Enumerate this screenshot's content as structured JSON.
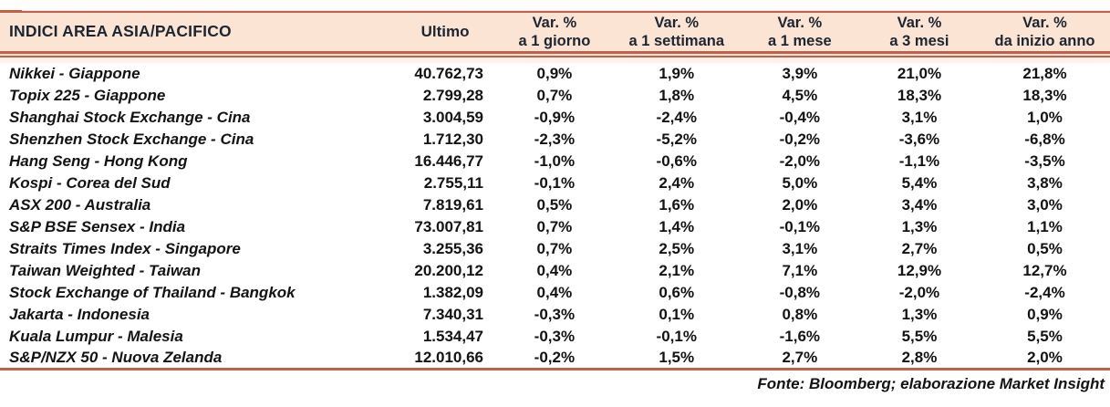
{
  "chart_data": {
    "type": "table",
    "title": "INDICI AREA ASIA/PACIFICO",
    "header": {
      "name_col": "INDICI AREA ASIA/PACIFICO",
      "ultimo_col": "Ultimo",
      "var_label": "Var. %",
      "var_periods": [
        "a 1 giorno",
        "a 1 settimana",
        "a 1 mese",
        "a 3 mesi",
        "da inizio anno"
      ]
    },
    "rows": [
      {
        "name": "Nikkei - Giappone",
        "ultimo": "40.762,73",
        "vars": [
          "0,9%",
          "1,9%",
          "3,9%",
          "21,0%",
          "21,8%"
        ]
      },
      {
        "name": "Topix 225 - Giappone",
        "ultimo": "2.799,28",
        "vars": [
          "0,7%",
          "1,8%",
          "4,5%",
          "18,3%",
          "18,3%"
        ]
      },
      {
        "name": "Shanghai Stock Exchange - Cina",
        "ultimo": "3.004,59",
        "vars": [
          "-0,9%",
          "-2,4%",
          "-0,4%",
          "3,1%",
          "1,0%"
        ]
      },
      {
        "name": "Shenzhen Stock Exchange - Cina",
        "ultimo": "1.712,30",
        "vars": [
          "-2,3%",
          "-5,2%",
          "-0,2%",
          "-3,6%",
          "-6,8%"
        ]
      },
      {
        "name": "Hang Seng - Hong Kong",
        "ultimo": "16.446,77",
        "vars": [
          "-1,0%",
          "-0,6%",
          "-2,0%",
          "-1,1%",
          "-3,5%"
        ]
      },
      {
        "name": "Kospi - Corea del Sud",
        "ultimo": "2.755,11",
        "vars": [
          "-0,1%",
          "2,4%",
          "5,0%",
          "5,4%",
          "3,8%"
        ]
      },
      {
        "name": "ASX 200 - Australia",
        "ultimo": "7.819,61",
        "vars": [
          "0,5%",
          "1,6%",
          "2,0%",
          "3,4%",
          "3,0%"
        ]
      },
      {
        "name": "S&P BSE Sensex - India",
        "ultimo": "73.007,81",
        "vars": [
          "0,7%",
          "1,4%",
          "-0,1%",
          "1,3%",
          "1,1%"
        ]
      },
      {
        "name": "Straits Times Index - Singapore",
        "ultimo": "3.255,36",
        "vars": [
          "0,7%",
          "2,5%",
          "3,1%",
          "2,7%",
          "0,5%"
        ]
      },
      {
        "name": "Taiwan Weighted - Taiwan",
        "ultimo": "20.200,12",
        "vars": [
          "0,4%",
          "2,1%",
          "7,1%",
          "12,9%",
          "12,7%"
        ]
      },
      {
        "name": "Stock Exchange of Thailand - Bangkok",
        "ultimo": "1.382,09",
        "vars": [
          "0,4%",
          "0,6%",
          "-0,8%",
          "-2,0%",
          "-2,4%"
        ]
      },
      {
        "name": "Jakarta - Indonesia",
        "ultimo": "7.340,31",
        "vars": [
          "-0,3%",
          "0,1%",
          "0,8%",
          "1,3%",
          "0,9%"
        ]
      },
      {
        "name": "Kuala Lumpur - Malesia",
        "ultimo": "1.534,47",
        "vars": [
          "-0,3%",
          "-0,1%",
          "-1,6%",
          "5,5%",
          "5,5%"
        ]
      },
      {
        "name": "S&P/NZX 50 - Nuova Zelanda",
        "ultimo": "12.010,66",
        "vars": [
          "-0,2%",
          "1,5%",
          "2,7%",
          "2,8%",
          "2,0%"
        ]
      }
    ],
    "source": "Fonte: Bloomberg; elaborazione Market Insight",
    "colors": {
      "accent_line": "#c1604b",
      "header_bg": "#fbe4d4",
      "header_text": "#1c2531",
      "light_band": "#fdf1e9",
      "body_text": "#131313"
    },
    "layout": {
      "grid": "off",
      "number_format": "it-IT"
    }
  }
}
